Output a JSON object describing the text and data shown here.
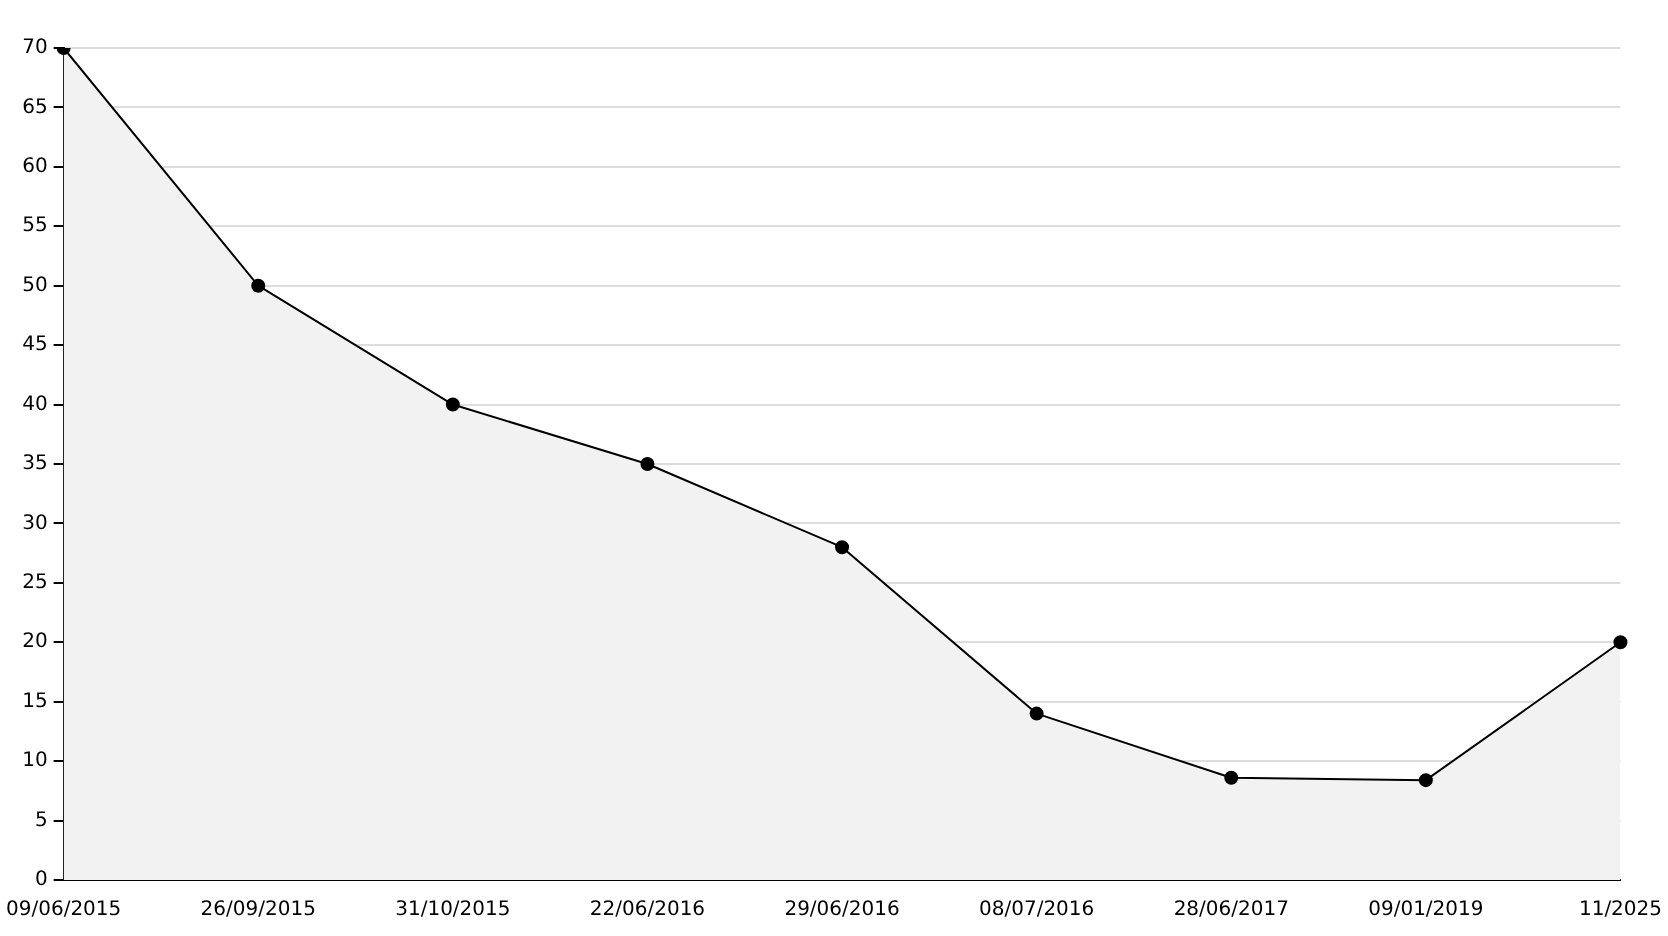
{
  "chart_data": {
    "type": "area",
    "categories": [
      "09/06/2015",
      "26/09/2015",
      "31/10/2015",
      "22/06/2016",
      "29/06/2016",
      "08/07/2016",
      "28/06/2017",
      "09/01/2019",
      "11/2025"
    ],
    "series": [
      {
        "color": "#000000",
        "values": [
          70,
          50,
          40,
          35,
          28,
          14,
          8.6,
          8.4,
          20
        ]
      }
    ],
    "ylim": [
      0,
      70
    ],
    "yticks": [
      0,
      5,
      10,
      15,
      20,
      25,
      30,
      35,
      40,
      45,
      50,
      55,
      60,
      65,
      70
    ],
    "grid": "y",
    "legend": false,
    "marker": "circle",
    "line_style": "solid"
  }
}
